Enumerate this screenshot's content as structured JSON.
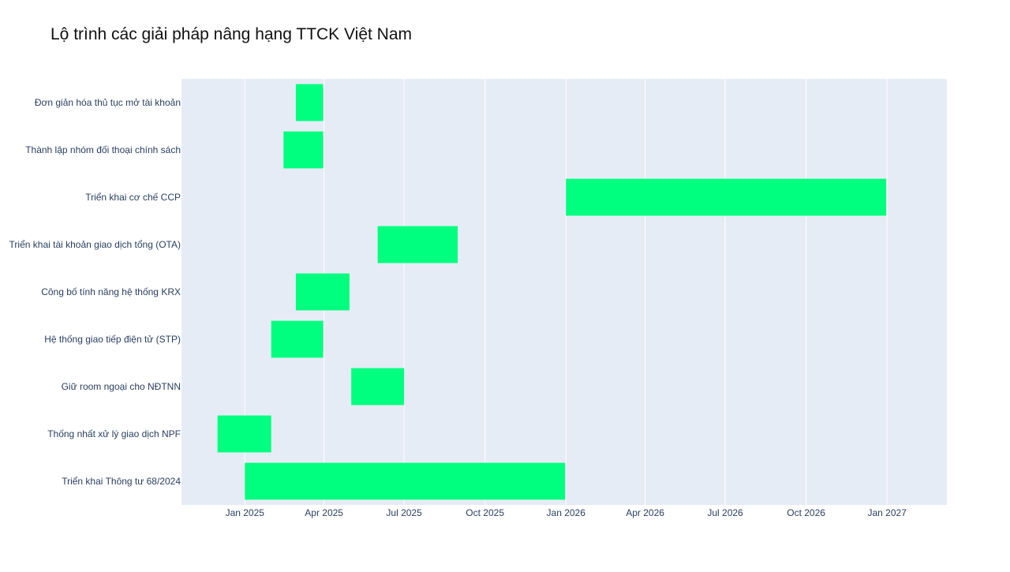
{
  "chart_data": {
    "type": "gantt",
    "title": "Lộ trình các giải pháp nâng hạng TTCK Việt Nam",
    "xlabel": "",
    "ylabel": "",
    "x_range": [
      "2024-10-21",
      "2027-03-10"
    ],
    "x_ticks": [
      {
        "date": "2025-01-01",
        "label": "Jan 2025"
      },
      {
        "date": "2025-04-01",
        "label": "Apr 2025"
      },
      {
        "date": "2025-07-01",
        "label": "Jul 2025"
      },
      {
        "date": "2025-10-01",
        "label": "Oct 2025"
      },
      {
        "date": "2026-01-01",
        "label": "Jan 2026"
      },
      {
        "date": "2026-04-01",
        "label": "Apr 2026"
      },
      {
        "date": "2026-07-01",
        "label": "Jul 2026"
      },
      {
        "date": "2026-10-01",
        "label": "Oct 2026"
      },
      {
        "date": "2027-01-01",
        "label": "Jan 2027"
      }
    ],
    "tasks": [
      {
        "name": "Đơn giản hóa thủ tục mở tài khoản",
        "start": "2025-02-28",
        "end": "2025-03-31"
      },
      {
        "name": "Thành lập nhóm đối thoại chính sách",
        "start": "2025-02-14",
        "end": "2025-03-31"
      },
      {
        "name": "Triển khai cơ chế CCP",
        "start": "2026-01-01",
        "end": "2026-12-31"
      },
      {
        "name": "Triển khai tài khoản giao dịch tổng (OTA)",
        "start": "2025-06-01",
        "end": "2025-08-31"
      },
      {
        "name": "Công bố tính năng hệ thống KRX",
        "start": "2025-02-28",
        "end": "2025-04-30"
      },
      {
        "name": "Hệ thống giao tiếp điện tử (STP)",
        "start": "2025-01-31",
        "end": "2025-03-31"
      },
      {
        "name": "Giữ room ngoại cho NĐTNN",
        "start": "2025-05-02",
        "end": "2025-07-01"
      },
      {
        "name": "Thống nhất xử lý giao dịch NPF",
        "start": "2024-12-01",
        "end": "2025-01-31"
      },
      {
        "name": "Triển khai Thông tư 68/2024",
        "start": "2025-01-01",
        "end": "2025-12-31"
      }
    ],
    "grid": true,
    "bar_color": "#00ff7f",
    "plot_bg": "#e5ecf6",
    "grid_color": "#ffffff"
  }
}
